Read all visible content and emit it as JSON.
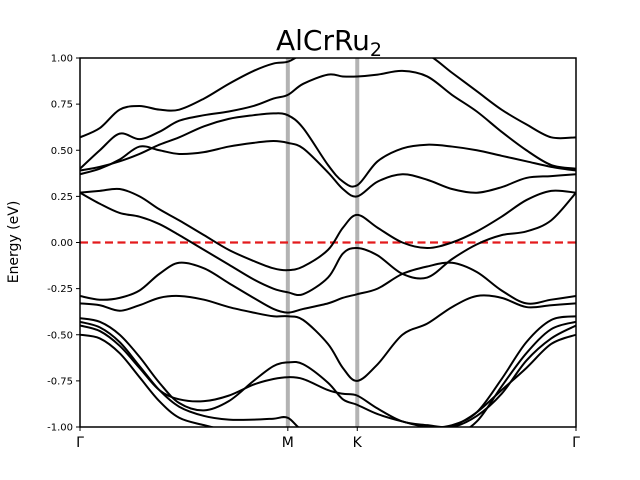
{
  "chart_data": {
    "type": "line",
    "title": "AlCrRu",
    "title_subscript": "2",
    "ylabel": "Energy (eV)",
    "ylim": [
      -1.0,
      1.0
    ],
    "xlim": [
      0,
      1
    ],
    "yticks": [
      "-1.00",
      "-0.75",
      "-0.50",
      "-0.25",
      "0.00",
      "0.25",
      "0.50",
      "0.75",
      "1.00"
    ],
    "ytick_values": [
      -1.0,
      -0.75,
      -0.5,
      -0.25,
      0.0,
      0.25,
      0.5,
      0.75,
      1.0
    ],
    "symmetry_points": [
      {
        "label": "Γ",
        "x": 0.0
      },
      {
        "label": "M",
        "x": 0.419
      },
      {
        "label": "K",
        "x": 0.559
      },
      {
        "label": "Γ",
        "x": 1.0
      }
    ],
    "fermi_level": 0.0,
    "colors": {
      "bands": "#000000",
      "fermi": "#e31a1c",
      "symmetry_lines": "#b3b3b3"
    },
    "series": [
      {
        "x": [
          0,
          0.04,
          0.08,
          0.12,
          0.16,
          0.2,
          0.25,
          0.3,
          0.35,
          0.39,
          0.419,
          0.45,
          0.5,
          0.53,
          0.559,
          0.6,
          0.65,
          0.7,
          0.75,
          0.8,
          0.85,
          0.9,
          0.95,
          1.0
        ],
        "y": [
          -0.43,
          -0.46,
          -0.54,
          -0.67,
          -0.8,
          -0.89,
          -0.94,
          -0.96,
          -0.96,
          -0.955,
          -0.95,
          -1.02,
          -1.05,
          -1.05,
          -1.05,
          -1.05,
          -1.05,
          -1.05,
          -1.05,
          -0.97,
          -0.78,
          -0.6,
          -0.47,
          -0.43
        ]
      },
      {
        "x": [
          0,
          0.04,
          0.08,
          0.12,
          0.16,
          0.2,
          0.25,
          0.3,
          0.35,
          0.39,
          0.419,
          0.45,
          0.5,
          0.53,
          0.559,
          0.6,
          0.65,
          0.7,
          0.75,
          0.8,
          0.85,
          0.9,
          0.95,
          1.0
        ],
        "y": [
          -0.41,
          -0.43,
          -0.5,
          -0.62,
          -0.76,
          -0.87,
          -0.91,
          -0.86,
          -0.75,
          -0.67,
          -0.65,
          -0.66,
          -0.76,
          -0.85,
          -0.88,
          -0.93,
          -0.97,
          -1.0,
          -0.99,
          -0.92,
          -0.74,
          -0.54,
          -0.42,
          -0.4
        ]
      },
      {
        "x": [
          0,
          0.04,
          0.08,
          0.12,
          0.16,
          0.2,
          0.25,
          0.3,
          0.35,
          0.39,
          0.419,
          0.45,
          0.5,
          0.53,
          0.559,
          0.6,
          0.65,
          0.7,
          0.75,
          0.8,
          0.85,
          0.9,
          0.95,
          1.0
        ],
        "y": [
          -0.5,
          -0.52,
          -0.6,
          -0.73,
          -0.86,
          -0.95,
          -0.99,
          -1.02,
          -1.03,
          -1.02,
          -1.01,
          -1.03,
          -1.05,
          -1.05,
          -1.05,
          -1.05,
          -1.05,
          -1.05,
          -1.0,
          -0.92,
          -0.8,
          -0.68,
          -0.55,
          -0.5
        ]
      },
      {
        "x": [
          0,
          0.04,
          0.08,
          0.12,
          0.16,
          0.2,
          0.25,
          0.3,
          0.35,
          0.39,
          0.419,
          0.45,
          0.5,
          0.53,
          0.559,
          0.6,
          0.65,
          0.7,
          0.75,
          0.8,
          0.85,
          0.9,
          0.95,
          1.0
        ],
        "y": [
          -0.45,
          -0.48,
          -0.56,
          -0.68,
          -0.8,
          -0.85,
          -0.86,
          -0.83,
          -0.77,
          -0.74,
          -0.73,
          -0.74,
          -0.8,
          -0.82,
          -0.83,
          -0.9,
          -0.97,
          -0.99,
          -1.0,
          -0.94,
          -0.82,
          -0.64,
          -0.52,
          -0.45
        ]
      },
      {
        "x": [
          0,
          0.04,
          0.08,
          0.12,
          0.16,
          0.2,
          0.25,
          0.3,
          0.35,
          0.39,
          0.419,
          0.45,
          0.5,
          0.53,
          0.559,
          0.6,
          0.65,
          0.7,
          0.75,
          0.8,
          0.85,
          0.9,
          0.95,
          1.0
        ],
        "y": [
          -0.33,
          -0.34,
          -0.37,
          -0.34,
          -0.3,
          -0.29,
          -0.31,
          -0.35,
          -0.38,
          -0.4,
          -0.4,
          -0.42,
          -0.55,
          -0.68,
          -0.75,
          -0.66,
          -0.5,
          -0.44,
          -0.35,
          -0.29,
          -0.3,
          -0.35,
          -0.34,
          -0.33
        ]
      },
      {
        "x": [
          0,
          0.04,
          0.08,
          0.12,
          0.16,
          0.2,
          0.25,
          0.3,
          0.35,
          0.39,
          0.419,
          0.45,
          0.5,
          0.53,
          0.559,
          0.6,
          0.65,
          0.7,
          0.75,
          0.8,
          0.85,
          0.9,
          0.95,
          1.0
        ],
        "y": [
          -0.29,
          -0.31,
          -0.3,
          -0.26,
          -0.17,
          -0.11,
          -0.14,
          -0.22,
          -0.3,
          -0.36,
          -0.38,
          -0.36,
          -0.33,
          -0.3,
          -0.28,
          -0.25,
          -0.17,
          -0.13,
          -0.11,
          -0.16,
          -0.26,
          -0.33,
          -0.31,
          -0.29
        ]
      },
      {
        "x": [
          0,
          0.04,
          0.08,
          0.12,
          0.16,
          0.2,
          0.25,
          0.3,
          0.35,
          0.39,
          0.419,
          0.45,
          0.5,
          0.53,
          0.559,
          0.6,
          0.65,
          0.7,
          0.75,
          0.8,
          0.85,
          0.9,
          0.95,
          1.0
        ],
        "y": [
          0.27,
          0.21,
          0.16,
          0.14,
          0.1,
          0.04,
          -0.04,
          -0.12,
          -0.2,
          -0.25,
          -0.27,
          -0.28,
          -0.19,
          -0.06,
          -0.03,
          -0.07,
          -0.17,
          -0.19,
          -0.09,
          -0.01,
          0.04,
          0.06,
          0.12,
          0.27
        ]
      },
      {
        "x": [
          0,
          0.04,
          0.08,
          0.12,
          0.16,
          0.2,
          0.25,
          0.3,
          0.35,
          0.39,
          0.419,
          0.45,
          0.5,
          0.53,
          0.559,
          0.6,
          0.65,
          0.7,
          0.75,
          0.8,
          0.85,
          0.9,
          0.95,
          1.0
        ],
        "y": [
          0.27,
          0.28,
          0.29,
          0.25,
          0.18,
          0.12,
          0.04,
          -0.04,
          -0.1,
          -0.14,
          -0.15,
          -0.13,
          -0.04,
          0.08,
          0.15,
          0.08,
          0.0,
          -0.03,
          0.0,
          0.06,
          0.14,
          0.23,
          0.28,
          0.27
        ]
      },
      {
        "x": [
          0,
          0.04,
          0.08,
          0.12,
          0.16,
          0.2,
          0.25,
          0.3,
          0.35,
          0.39,
          0.419,
          0.45,
          0.5,
          0.53,
          0.559,
          0.6,
          0.65,
          0.7,
          0.75,
          0.8,
          0.85,
          0.9,
          0.95,
          1.0
        ],
        "y": [
          0.37,
          0.4,
          0.45,
          0.52,
          0.5,
          0.48,
          0.49,
          0.52,
          0.54,
          0.55,
          0.54,
          0.51,
          0.38,
          0.29,
          0.25,
          0.33,
          0.37,
          0.34,
          0.29,
          0.27,
          0.3,
          0.35,
          0.36,
          0.37
        ]
      },
      {
        "x": [
          0,
          0.04,
          0.08,
          0.12,
          0.16,
          0.2,
          0.25,
          0.3,
          0.35,
          0.39,
          0.419,
          0.45,
          0.5,
          0.53,
          0.559,
          0.6,
          0.65,
          0.7,
          0.75,
          0.8,
          0.85,
          0.9,
          0.95,
          1.0
        ],
        "y": [
          0.39,
          0.41,
          0.44,
          0.48,
          0.53,
          0.57,
          0.63,
          0.67,
          0.69,
          0.7,
          0.69,
          0.62,
          0.42,
          0.33,
          0.31,
          0.44,
          0.51,
          0.53,
          0.52,
          0.5,
          0.47,
          0.44,
          0.41,
          0.39
        ]
      },
      {
        "x": [
          0,
          0.04,
          0.08,
          0.12,
          0.16,
          0.2,
          0.25,
          0.3,
          0.35,
          0.39,
          0.419,
          0.45,
          0.5,
          0.53,
          0.559,
          0.6,
          0.65,
          0.7,
          0.75,
          0.8,
          0.85,
          0.9,
          0.95,
          1.0
        ],
        "y": [
          0.4,
          0.5,
          0.59,
          0.56,
          0.6,
          0.66,
          0.69,
          0.71,
          0.74,
          0.78,
          0.8,
          0.86,
          0.91,
          0.9,
          0.9,
          0.91,
          0.93,
          0.9,
          0.8,
          0.71,
          0.6,
          0.5,
          0.42,
          0.4
        ]
      },
      {
        "x": [
          0,
          0.04,
          0.08,
          0.12,
          0.16,
          0.2,
          0.25,
          0.3,
          0.35,
          0.39,
          0.419,
          0.45,
          0.5,
          0.53,
          0.559,
          0.6,
          0.65,
          0.7,
          0.75,
          0.8,
          0.85,
          0.9,
          0.95,
          1.0
        ],
        "y": [
          0.57,
          0.62,
          0.72,
          0.74,
          0.72,
          0.72,
          0.78,
          0.86,
          0.93,
          0.97,
          0.98,
          1.02,
          1.05,
          1.05,
          1.05,
          1.05,
          1.05,
          1.02,
          0.92,
          0.82,
          0.72,
          0.64,
          0.57,
          0.57
        ]
      }
    ]
  }
}
